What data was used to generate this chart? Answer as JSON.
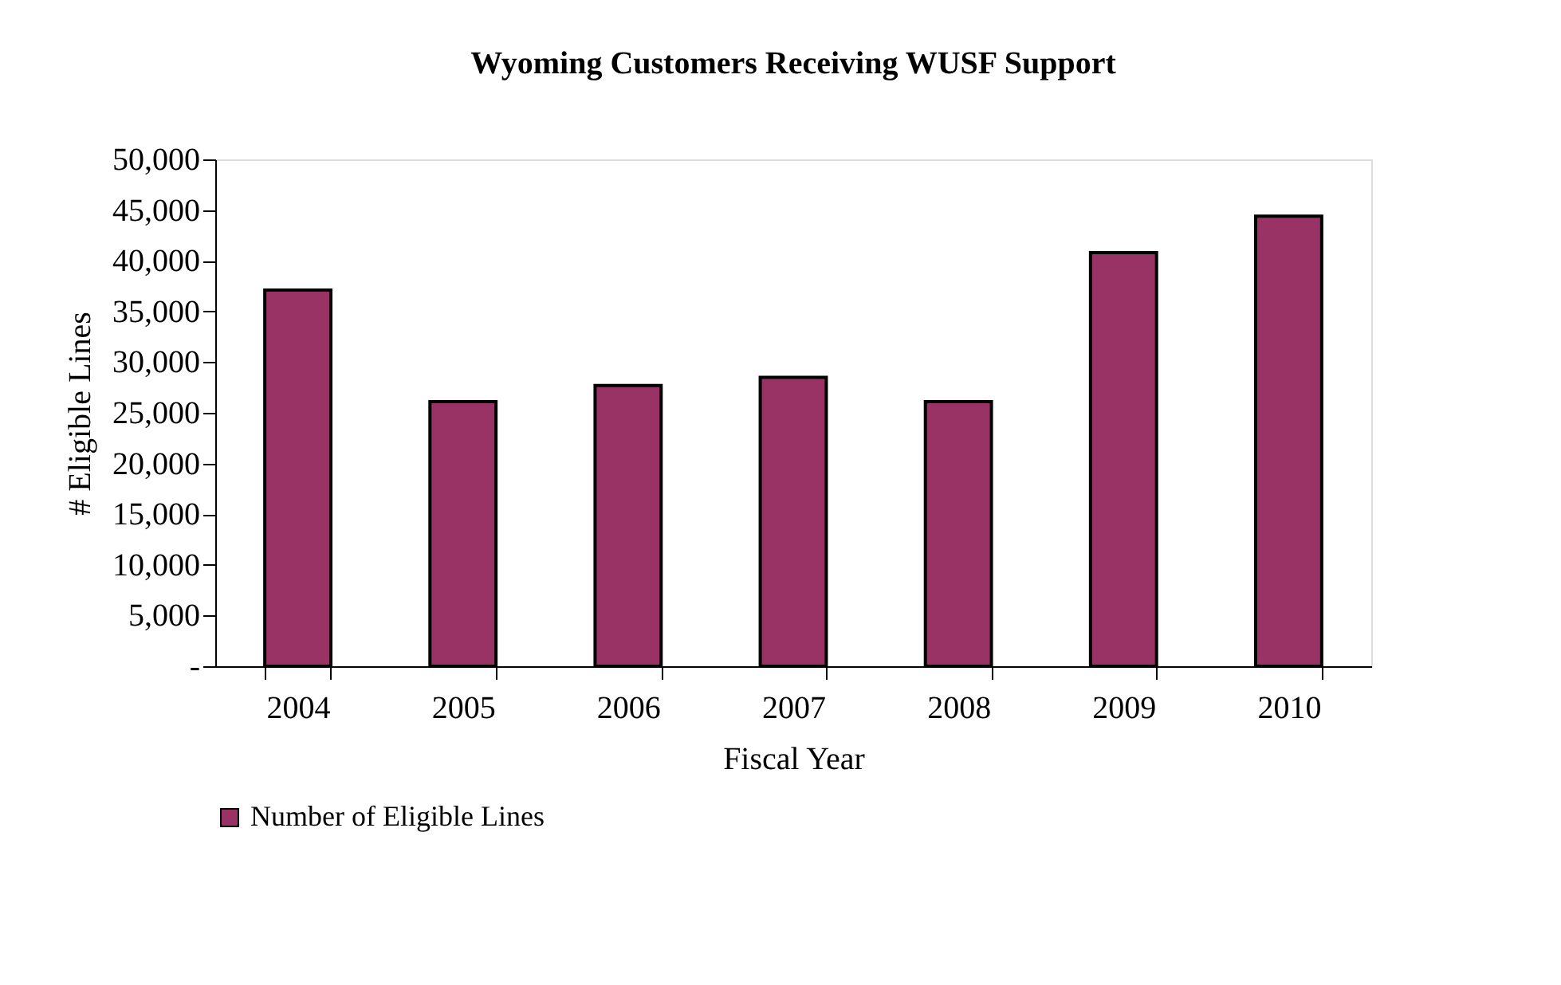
{
  "chart_data": {
    "type": "bar",
    "title": "Wyoming Customers Receiving WUSF Support",
    "xlabel": "Fiscal Year",
    "ylabel": "# Eligible Lines",
    "categories": [
      "2004",
      "2005",
      "2006",
      "2007",
      "2008",
      "2009",
      "2010"
    ],
    "series": [
      {
        "name": "Number of Eligible Lines",
        "color": "#993366",
        "values": [
          37100,
          26100,
          27700,
          28500,
          26100,
          40800,
          44400
        ]
      }
    ],
    "ylim": [
      0,
      50000
    ],
    "yticks": [
      {
        "value": 0,
        "label": "-"
      },
      {
        "value": 5000,
        "label": "5,000"
      },
      {
        "value": 10000,
        "label": "10,000"
      },
      {
        "value": 15000,
        "label": "15,000"
      },
      {
        "value": 20000,
        "label": "20,000"
      },
      {
        "value": 25000,
        "label": "25,000"
      },
      {
        "value": 30000,
        "label": "30,000"
      },
      {
        "value": 35000,
        "label": "35,000"
      },
      {
        "value": 40000,
        "label": "40,000"
      },
      {
        "value": 45000,
        "label": "45,000"
      },
      {
        "value": 50000,
        "label": "50,000"
      }
    ],
    "grid": false,
    "legend": "bottom"
  }
}
